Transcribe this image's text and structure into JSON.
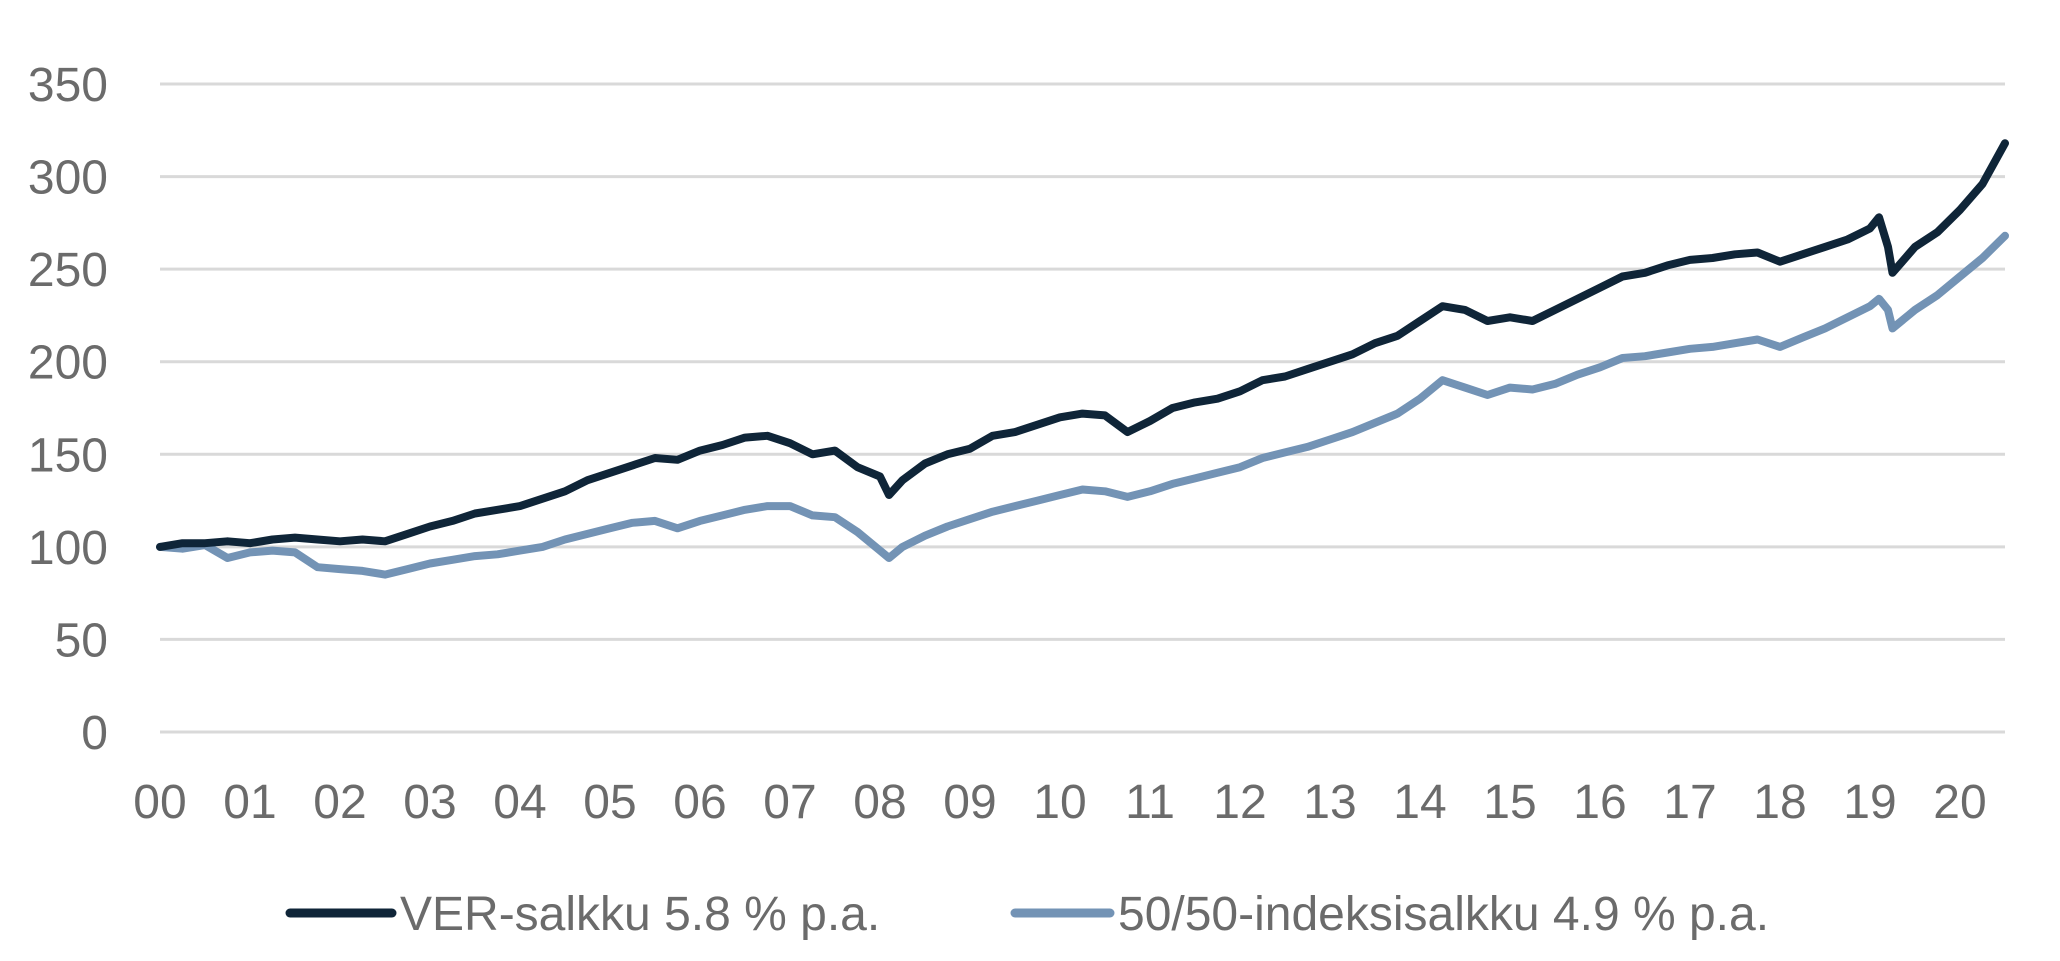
{
  "chart_data": {
    "type": "line",
    "title": "",
    "xlabel": "",
    "ylabel": "",
    "ylim": [
      0,
      350
    ],
    "yticks": [
      0,
      50,
      100,
      150,
      200,
      250,
      300,
      350
    ],
    "xlim": [
      2000,
      2020.5
    ],
    "x_tick_labels": [
      "00",
      "01",
      "02",
      "03",
      "04",
      "05",
      "06",
      "07",
      "08",
      "09",
      "10",
      "11",
      "12",
      "13",
      "14",
      "15",
      "16",
      "17",
      "18",
      "19",
      "20"
    ],
    "grid": "horizontal",
    "legend_position": "bottom",
    "series": [
      {
        "name": "VER-salkku 5.8 % p.a.",
        "color": "#0f2538",
        "points": [
          [
            2000.0,
            100
          ],
          [
            2000.25,
            102
          ],
          [
            2000.5,
            102
          ],
          [
            2000.75,
            103
          ],
          [
            2001.0,
            102
          ],
          [
            2001.25,
            104
          ],
          [
            2001.5,
            105
          ],
          [
            2001.75,
            104
          ],
          [
            2002.0,
            103
          ],
          [
            2002.25,
            104
          ],
          [
            2002.5,
            103
          ],
          [
            2002.75,
            107
          ],
          [
            2003.0,
            111
          ],
          [
            2003.25,
            114
          ],
          [
            2003.5,
            118
          ],
          [
            2003.75,
            120
          ],
          [
            2004.0,
            122
          ],
          [
            2004.25,
            126
          ],
          [
            2004.5,
            130
          ],
          [
            2004.75,
            136
          ],
          [
            2005.0,
            140
          ],
          [
            2005.25,
            144
          ],
          [
            2005.5,
            148
          ],
          [
            2005.75,
            147
          ],
          [
            2006.0,
            152
          ],
          [
            2006.25,
            155
          ],
          [
            2006.5,
            159
          ],
          [
            2006.75,
            160
          ],
          [
            2007.0,
            156
          ],
          [
            2007.25,
            150
          ],
          [
            2007.5,
            152
          ],
          [
            2007.75,
            143
          ],
          [
            2008.0,
            138
          ],
          [
            2008.1,
            128
          ],
          [
            2008.25,
            136
          ],
          [
            2008.5,
            145
          ],
          [
            2008.75,
            150
          ],
          [
            2009.0,
            153
          ],
          [
            2009.25,
            160
          ],
          [
            2009.5,
            162
          ],
          [
            2009.75,
            166
          ],
          [
            2010.0,
            170
          ],
          [
            2010.25,
            172
          ],
          [
            2010.5,
            171
          ],
          [
            2010.75,
            162
          ],
          [
            2011.0,
            168
          ],
          [
            2011.25,
            175
          ],
          [
            2011.5,
            178
          ],
          [
            2011.75,
            180
          ],
          [
            2012.0,
            184
          ],
          [
            2012.25,
            190
          ],
          [
            2012.5,
            192
          ],
          [
            2012.75,
            196
          ],
          [
            2013.0,
            200
          ],
          [
            2013.25,
            204
          ],
          [
            2013.5,
            210
          ],
          [
            2013.75,
            214
          ],
          [
            2014.0,
            222
          ],
          [
            2014.25,
            230
          ],
          [
            2014.5,
            228
          ],
          [
            2014.75,
            222
          ],
          [
            2015.0,
            224
          ],
          [
            2015.25,
            222
          ],
          [
            2015.5,
            228
          ],
          [
            2015.75,
            234
          ],
          [
            2016.0,
            240
          ],
          [
            2016.25,
            246
          ],
          [
            2016.5,
            248
          ],
          [
            2016.75,
            252
          ],
          [
            2017.0,
            255
          ],
          [
            2017.25,
            256
          ],
          [
            2017.5,
            258
          ],
          [
            2017.75,
            259
          ],
          [
            2018.0,
            254
          ],
          [
            2018.25,
            258
          ],
          [
            2018.5,
            262
          ],
          [
            2018.75,
            266
          ],
          [
            2019.0,
            272
          ],
          [
            2019.1,
            278
          ],
          [
            2019.2,
            262
          ],
          [
            2019.25,
            248
          ],
          [
            2019.5,
            262
          ],
          [
            2019.75,
            270
          ],
          [
            2020.0,
            282
          ],
          [
            2020.25,
            296
          ],
          [
            2020.5,
            318
          ]
        ]
      },
      {
        "name": "50/50-indeksisalkku 4.9 % p.a.",
        "color": "#7393b5",
        "points": [
          [
            2000.0,
            100
          ],
          [
            2000.25,
            99
          ],
          [
            2000.5,
            101
          ],
          [
            2000.75,
            94
          ],
          [
            2001.0,
            97
          ],
          [
            2001.25,
            98
          ],
          [
            2001.5,
            97
          ],
          [
            2001.75,
            89
          ],
          [
            2002.0,
            88
          ],
          [
            2002.25,
            87
          ],
          [
            2002.5,
            85
          ],
          [
            2002.75,
            88
          ],
          [
            2003.0,
            91
          ],
          [
            2003.25,
            93
          ],
          [
            2003.5,
            95
          ],
          [
            2003.75,
            96
          ],
          [
            2004.0,
            98
          ],
          [
            2004.25,
            100
          ],
          [
            2004.5,
            104
          ],
          [
            2004.75,
            107
          ],
          [
            2005.0,
            110
          ],
          [
            2005.25,
            113
          ],
          [
            2005.5,
            114
          ],
          [
            2005.75,
            110
          ],
          [
            2006.0,
            114
          ],
          [
            2006.25,
            117
          ],
          [
            2006.5,
            120
          ],
          [
            2006.75,
            122
          ],
          [
            2007.0,
            122
          ],
          [
            2007.25,
            117
          ],
          [
            2007.5,
            116
          ],
          [
            2007.75,
            108
          ],
          [
            2008.0,
            98
          ],
          [
            2008.1,
            94
          ],
          [
            2008.25,
            100
          ],
          [
            2008.5,
            106
          ],
          [
            2008.75,
            111
          ],
          [
            2009.0,
            115
          ],
          [
            2009.25,
            119
          ],
          [
            2009.5,
            122
          ],
          [
            2009.75,
            125
          ],
          [
            2010.0,
            128
          ],
          [
            2010.25,
            131
          ],
          [
            2010.5,
            130
          ],
          [
            2010.75,
            127
          ],
          [
            2011.0,
            130
          ],
          [
            2011.25,
            134
          ],
          [
            2011.5,
            137
          ],
          [
            2011.75,
            140
          ],
          [
            2012.0,
            143
          ],
          [
            2012.25,
            148
          ],
          [
            2012.5,
            151
          ],
          [
            2012.75,
            154
          ],
          [
            2013.0,
            158
          ],
          [
            2013.25,
            162
          ],
          [
            2013.5,
            167
          ],
          [
            2013.75,
            172
          ],
          [
            2014.0,
            180
          ],
          [
            2014.25,
            190
          ],
          [
            2014.5,
            186
          ],
          [
            2014.75,
            182
          ],
          [
            2015.0,
            186
          ],
          [
            2015.25,
            185
          ],
          [
            2015.5,
            188
          ],
          [
            2015.75,
            193
          ],
          [
            2016.0,
            197
          ],
          [
            2016.25,
            202
          ],
          [
            2016.5,
            203
          ],
          [
            2016.75,
            205
          ],
          [
            2017.0,
            207
          ],
          [
            2017.25,
            208
          ],
          [
            2017.5,
            210
          ],
          [
            2017.75,
            212
          ],
          [
            2018.0,
            208
          ],
          [
            2018.25,
            213
          ],
          [
            2018.5,
            218
          ],
          [
            2018.75,
            224
          ],
          [
            2019.0,
            230
          ],
          [
            2019.1,
            234
          ],
          [
            2019.2,
            228
          ],
          [
            2019.25,
            218
          ],
          [
            2019.5,
            228
          ],
          [
            2019.75,
            236
          ],
          [
            2020.0,
            246
          ],
          [
            2020.25,
            256
          ],
          [
            2020.5,
            268
          ]
        ]
      }
    ]
  }
}
